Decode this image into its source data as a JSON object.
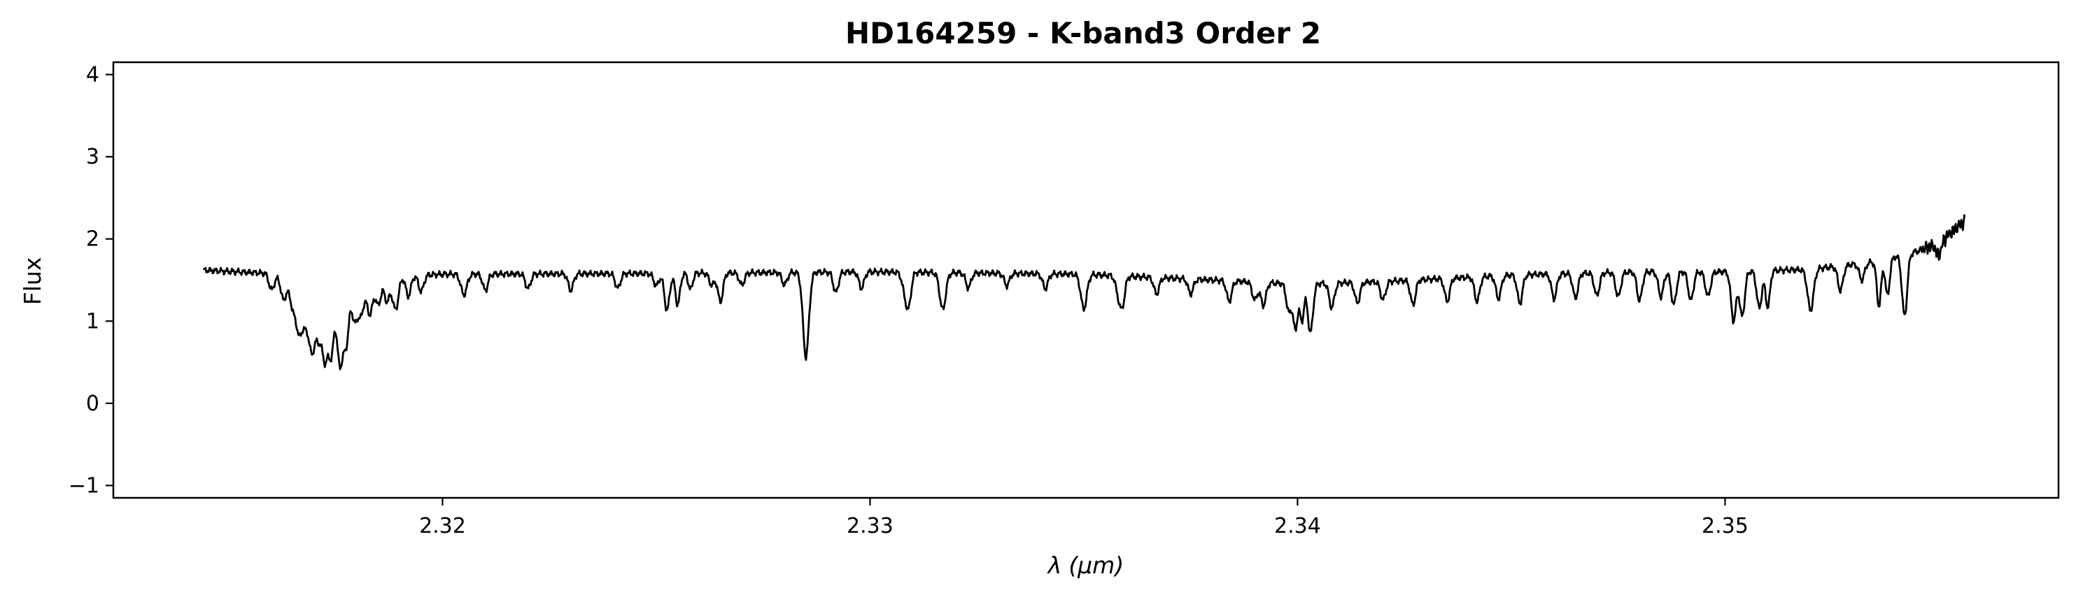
{
  "chart_data": {
    "type": "line",
    "title": "HD164259 - K-band3 Order 2",
    "xlabel_symbol": "λ",
    "xlabel_unit": "(μm)",
    "ylabel": "Flux",
    "xlim": [
      2.3123,
      2.3578
    ],
    "ylim": [
      -1.15,
      4.15
    ],
    "x_ticks": [
      2.32,
      2.33,
      2.34,
      2.35
    ],
    "x_tick_labels": [
      "2.32",
      "2.33",
      "2.34",
      "2.35"
    ],
    "y_ticks": [
      -1,
      0,
      1,
      2,
      3,
      4
    ],
    "y_tick_labels": [
      "−1",
      "0",
      "1",
      "2",
      "3",
      "4"
    ],
    "grid": false,
    "series": [
      {
        "color": "#000000",
        "x_start": 2.3144,
        "x_end": 2.3556,
        "continuum": [
          [
            2.3144,
            1.62
          ],
          [
            2.316,
            1.58
          ],
          [
            2.3165,
            1.45
          ],
          [
            2.3172,
            1.38
          ],
          [
            2.318,
            1.45
          ],
          [
            2.319,
            1.55
          ],
          [
            2.32,
            1.57
          ],
          [
            2.325,
            1.58
          ],
          [
            2.33,
            1.6
          ],
          [
            2.335,
            1.57
          ],
          [
            2.338,
            1.5
          ],
          [
            2.34,
            1.45
          ],
          [
            2.342,
            1.48
          ],
          [
            2.345,
            1.56
          ],
          [
            2.348,
            1.6
          ],
          [
            2.35,
            1.6
          ],
          [
            2.352,
            1.63
          ],
          [
            2.3535,
            1.72
          ],
          [
            2.3545,
            1.85
          ],
          [
            2.355,
            1.95
          ],
          [
            2.3556,
            2.22
          ]
        ],
        "absorption_lines": [
          [
            2.316,
            0.2,
            6e-05
          ],
          [
            2.31628,
            0.25,
            6e-05
          ],
          [
            2.3165,
            0.28,
            7e-05
          ],
          [
            2.31665,
            0.55,
            7e-05
          ],
          [
            2.3168,
            0.4,
            7e-05
          ],
          [
            2.31695,
            0.75,
            7e-05
          ],
          [
            2.3171,
            0.5,
            6e-05
          ],
          [
            2.31725,
            0.85,
            7e-05
          ],
          [
            2.3174,
            0.75,
            6e-05
          ],
          [
            2.3176,
            0.95,
            7e-05
          ],
          [
            2.31775,
            0.65,
            6e-05
          ],
          [
            2.31795,
            0.45,
            7e-05
          ],
          [
            2.3181,
            0.35,
            6e-05
          ],
          [
            2.3183,
            0.4,
            7e-05
          ],
          [
            2.3185,
            0.3,
            6e-05
          ],
          [
            2.3187,
            0.28,
            6e-05
          ],
          [
            2.3189,
            0.4,
            7e-05
          ],
          [
            2.3192,
            0.25,
            6e-05
          ],
          [
            2.3195,
            0.2,
            6e-05
          ],
          [
            2.3205,
            0.25,
            7e-05
          ],
          [
            2.321,
            0.2,
            6e-05
          ],
          [
            2.322,
            0.18,
            6e-05
          ],
          [
            2.323,
            0.2,
            6e-05
          ],
          [
            2.3241,
            0.18,
            6e-05
          ],
          [
            2.325,
            0.15,
            6e-05
          ],
          [
            2.3255,
            0.18,
            6e-05
          ],
          [
            2.327,
            0.15,
            6e-05
          ],
          [
            2.328,
            0.15,
            6e-05
          ],
          [
            2.3285,
            0.1,
            6e-05
          ],
          [
            2.32525,
            0.45,
            6e-05
          ],
          [
            2.3255,
            0.2,
            5e-05
          ],
          [
            2.3258,
            0.2,
            5e-05
          ],
          [
            2.3263,
            0.15,
            6e-05
          ],
          [
            2.3265,
            0.35,
            6e-05
          ],
          [
            2.3285,
            0.93,
            7e-05
          ],
          [
            2.3292,
            0.25,
            6e-05
          ],
          [
            2.3298,
            0.2,
            6e-05
          ],
          [
            2.3308,
            0.18,
            6e-05
          ],
          [
            2.3309,
            0.4,
            6e-05
          ],
          [
            2.3317,
            0.45,
            7e-05
          ],
          [
            2.3323,
            0.18,
            6e-05
          ],
          [
            2.3332,
            0.15,
            6e-05
          ],
          [
            2.3341,
            0.18,
            6e-05
          ],
          [
            2.335,
            0.42,
            7e-05
          ],
          [
            2.3358,
            0.18,
            6e-05
          ],
          [
            2.3359,
            0.35,
            6e-05
          ],
          [
            2.3367,
            0.2,
            6e-05
          ],
          [
            2.3375,
            0.18,
            6e-05
          ],
          [
            2.3384,
            0.25,
            6e-05
          ],
          [
            2.339,
            0.22,
            6e-05
          ],
          [
            2.3392,
            0.28,
            6e-05
          ],
          [
            2.3398,
            0.35,
            6e-05
          ],
          [
            2.33995,
            0.55,
            5e-05
          ],
          [
            2.3401,
            0.45,
            5e-05
          ],
          [
            2.3403,
            0.6,
            6e-05
          ],
          [
            2.3408,
            0.3,
            6e-05
          ],
          [
            2.3414,
            0.25,
            6e-05
          ],
          [
            2.342,
            0.22,
            6e-05
          ],
          [
            2.3427,
            0.3,
            6e-05
          ],
          [
            2.3435,
            0.28,
            6e-05
          ],
          [
            2.3442,
            0.3,
            6e-05
          ],
          [
            2.3447,
            0.28,
            6e-05
          ],
          [
            2.3452,
            0.35,
            6e-05
          ],
          [
            2.346,
            0.3,
            6e-05
          ],
          [
            2.3465,
            0.3,
            6e-05
          ],
          [
            2.347,
            0.28,
            6e-05
          ],
          [
            2.3475,
            0.3,
            6e-05
          ],
          [
            2.348,
            0.35,
            6e-05
          ],
          [
            2.3485,
            0.3,
            6e-05
          ],
          [
            2.3488,
            0.4,
            6e-05
          ],
          [
            2.3492,
            0.35,
            6e-05
          ],
          [
            2.3496,
            0.3,
            6e-05
          ],
          [
            2.3502,
            0.6,
            6e-05
          ],
          [
            2.3504,
            0.55,
            6e-05
          ],
          [
            2.3508,
            0.45,
            6e-05
          ],
          [
            2.351,
            0.45,
            5e-05
          ],
          [
            2.352,
            0.5,
            7e-05
          ],
          [
            2.3527,
            0.3,
            6e-05
          ],
          [
            2.3532,
            0.2,
            6e-05
          ],
          [
            2.3536,
            0.55,
            5e-05
          ],
          [
            2.3538,
            0.45,
            5e-05
          ],
          [
            2.3542,
            0.75,
            6e-05
          ],
          [
            2.355,
            0.15,
            6e-05
          ]
        ]
      }
    ]
  }
}
